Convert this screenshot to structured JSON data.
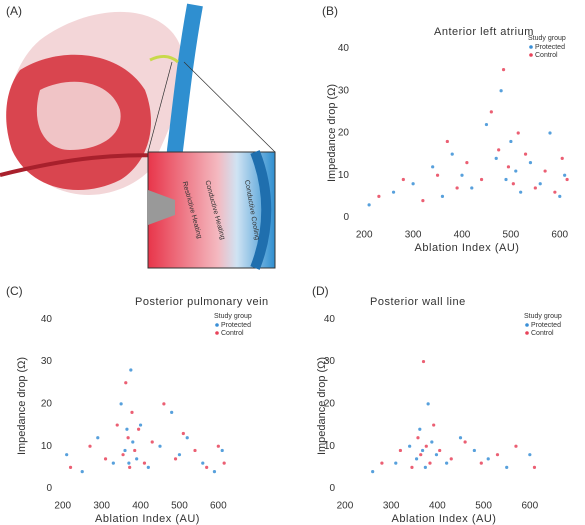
{
  "illustration": {
    "label": "(A)",
    "labels": [
      "Restrictive Heating",
      "Conductive Heating",
      "Conductive Cooling"
    ]
  },
  "chart_data": [
    {
      "panel": "(B)",
      "type": "scatter",
      "title": "Anterior left atrium",
      "xlabel": "Ablation Index (AU)",
      "ylabel": "Impedance drop (Ω)",
      "legend_title": "Study group",
      "xlim": [
        175,
        625
      ],
      "ylim": [
        -2,
        42
      ],
      "xticks": [
        200,
        300,
        400,
        500,
        600
      ],
      "yticks": [
        0,
        10,
        20,
        30,
        40
      ],
      "series": [
        {
          "name": "Protected",
          "color": "#3a8fd6",
          "x": [
            210,
            260,
            300,
            340,
            360,
            380,
            400,
            420,
            450,
            470,
            480,
            490,
            500,
            510,
            520,
            540,
            560,
            580,
            600,
            610
          ],
          "values": [
            3,
            6,
            8,
            12,
            5,
            15,
            10,
            7,
            22,
            14,
            30,
            9,
            18,
            11,
            6,
            13,
            8,
            20,
            5,
            10
          ]
        },
        {
          "name": "Control",
          "color": "#e8435a",
          "x": [
            230,
            280,
            320,
            350,
            370,
            390,
            410,
            440,
            460,
            475,
            485,
            495,
            505,
            515,
            530,
            550,
            570,
            590,
            605,
            615
          ],
          "values": [
            5,
            9,
            4,
            10,
            18,
            7,
            13,
            9,
            25,
            16,
            35,
            12,
            8,
            20,
            15,
            7,
            11,
            6,
            14,
            9
          ]
        }
      ]
    },
    {
      "panel": "(C)",
      "type": "scatter",
      "title": "Posterior pulmonary vein",
      "xlabel": "Ablation Index (AU)",
      "ylabel": "Impedance drop (Ω)",
      "legend_title": "Study group",
      "xlim": [
        180,
        630
      ],
      "ylim": [
        -2,
        41
      ],
      "xticks": [
        200,
        300,
        400,
        500,
        600
      ],
      "yticks": [
        0,
        10,
        20,
        30,
        40
      ],
      "series": [
        {
          "name": "Protected",
          "color": "#3a8fd6",
          "x": [
            210,
            250,
            290,
            330,
            350,
            360,
            365,
            370,
            375,
            380,
            390,
            400,
            420,
            450,
            480,
            500,
            520,
            560,
            590,
            610
          ],
          "values": [
            8,
            4,
            12,
            6,
            20,
            9,
            14,
            6,
            28,
            11,
            7,
            15,
            5,
            10,
            18,
            8,
            12,
            6,
            4,
            9
          ]
        },
        {
          "name": "Control",
          "color": "#e8435a",
          "x": [
            220,
            270,
            310,
            340,
            355,
            362,
            368,
            372,
            378,
            385,
            395,
            410,
            430,
            460,
            490,
            510,
            540,
            570,
            600,
            615
          ],
          "values": [
            5,
            10,
            7,
            15,
            8,
            25,
            12,
            5,
            18,
            9,
            14,
            6,
            11,
            20,
            7,
            13,
            9,
            5,
            10,
            6
          ]
        }
      ]
    },
    {
      "panel": "(D)",
      "type": "scatter",
      "title": "Posterior wall line",
      "xlabel": "Ablation Index (AU)",
      "ylabel": "Impedance drop (Ω)",
      "legend_title": "Study group",
      "xlim": [
        185,
        622
      ],
      "ylim": [
        -2,
        41
      ],
      "xticks": [
        200,
        300,
        400,
        500,
        600
      ],
      "yticks": [
        0,
        10,
        20,
        30,
        40
      ],
      "series": [
        {
          "name": "Protected",
          "color": "#3a8fd6",
          "x": [
            260,
            310,
            340,
            355,
            362,
            368,
            374,
            380,
            388,
            398,
            420,
            450,
            480,
            510,
            550,
            600
          ],
          "values": [
            4,
            6,
            10,
            7,
            14,
            9,
            5,
            20,
            11,
            8,
            6,
            12,
            9,
            7,
            5,
            8
          ]
        },
        {
          "name": "Control",
          "color": "#e8435a",
          "x": [
            280,
            320,
            345,
            358,
            364,
            370,
            376,
            384,
            392,
            405,
            430,
            460,
            495,
            530,
            570,
            610
          ],
          "values": [
            6,
            9,
            5,
            12,
            8,
            30,
            10,
            6,
            15,
            9,
            7,
            11,
            6,
            8,
            10,
            5
          ]
        }
      ]
    }
  ]
}
